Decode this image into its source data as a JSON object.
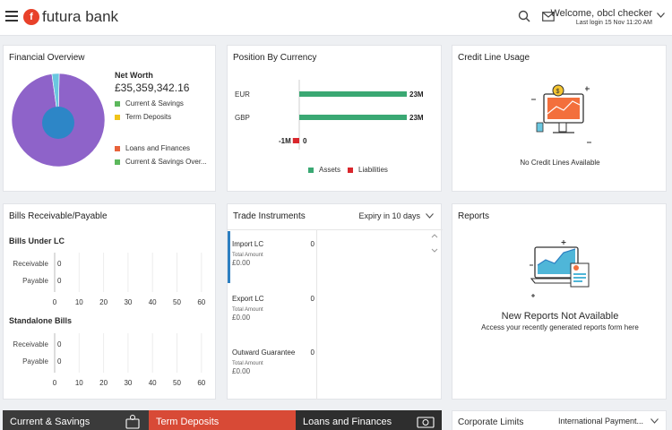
{
  "header": {
    "brand": "futura bank",
    "welcome": "Welcome, obcl checker",
    "last_login": "Last login 15 Nov 11:20 AM"
  },
  "financial_overview": {
    "title": "Financial Overview",
    "net_worth_label": "Net Worth",
    "net_worth_value": "£35,359,342.16",
    "legend": [
      {
        "label": "Current & Savings",
        "color": "#5cb85c"
      },
      {
        "label": "Term Deposits",
        "color": "#f0c419"
      },
      {
        "label": "Loans and Finances",
        "color": "#e8623a"
      },
      {
        "label": "Current & Savings Over...",
        "color": "#5cb85c"
      }
    ]
  },
  "position_by_currency": {
    "title": "Position By Currency",
    "legend_assets": "Assets",
    "legend_liabilities": "Liabilities"
  },
  "credit_line": {
    "title": "Credit Line Usage",
    "empty": "No Credit Lines Available"
  },
  "bills": {
    "title": "Bills Receivable/Payable",
    "section1": "Bills Under LC",
    "section2": "Standalone Bills",
    "receivable": "Receivable",
    "payable": "Payable",
    "zero": "0",
    "ticks": [
      "0",
      "10",
      "20",
      "30",
      "40",
      "50",
      "60"
    ]
  },
  "trade": {
    "title": "Trade Instruments",
    "filter": "Expiry in 10 days",
    "items": [
      {
        "name": "Import LC",
        "count": "0",
        "amount_label": "Total Amount",
        "amount": "£0.00"
      },
      {
        "name": "Export LC",
        "count": "0",
        "amount_label": "Total Amount",
        "amount": "£0.00"
      },
      {
        "name": "Outward Guarantee",
        "count": "0",
        "amount_label": "Total Amount",
        "amount": "£0.00"
      }
    ]
  },
  "reports": {
    "title": "Reports",
    "empty_title": "New Reports Not Available",
    "empty_sub": "Access your recently generated reports form here"
  },
  "bottom": {
    "tile1": "Current & Savings",
    "tile2": "Term Deposits",
    "tile3": "Loans and Finances",
    "corp_title": "Corporate Limits",
    "corp_select": "International Payment..."
  },
  "chart_data": [
    {
      "type": "pie",
      "title": "",
      "labels": [
        "Current & Savings",
        "Term Deposits",
        "Loans and Finances",
        "Current & Savings Over..."
      ],
      "values": [
        97.5,
        0,
        0,
        2.5
      ],
      "colors": [
        "#8e63c9",
        "#f0c419",
        "#e8623a",
        "#6ac7e0"
      ]
    },
    {
      "type": "bar",
      "title": "Position By Currency",
      "orientation": "horizontal",
      "categories": [
        "EUR",
        "GBP",
        ""
      ],
      "series": [
        {
          "name": "Assets",
          "values": [
            23,
            23,
            0
          ],
          "color": "#3aa873"
        },
        {
          "name": "Liabilities",
          "values": [
            0,
            0,
            -1
          ],
          "color": "#d9262c"
        }
      ],
      "data_labels": [
        "23M",
        "23M",
        "-1M",
        "0"
      ],
      "xlim": [
        -1,
        23
      ]
    }
  ]
}
